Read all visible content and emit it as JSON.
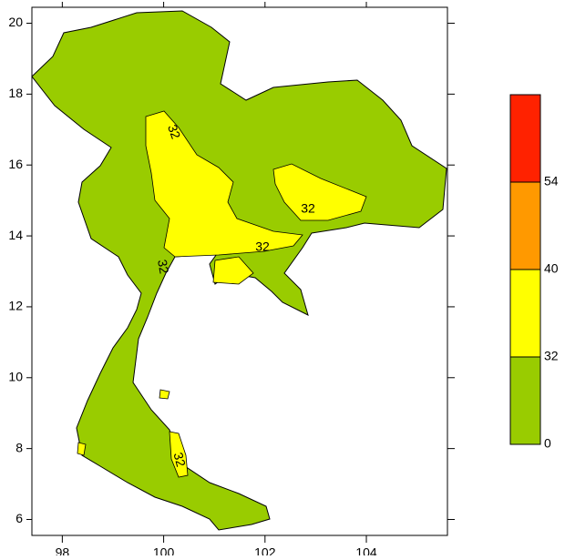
{
  "map": {
    "xlim": [
      97.4,
      105.6
    ],
    "ylim": [
      5.55,
      20.45
    ],
    "xticks": [
      98,
      100,
      102,
      104
    ],
    "yticks": [
      6,
      8,
      10,
      12,
      14,
      16,
      18,
      20
    ],
    "colorbar": {
      "levels": [
        0,
        32,
        40,
        54
      ],
      "colors": [
        "#99cc00",
        "#ffff00",
        "#ff9900",
        "#ff2200"
      ]
    },
    "contour_labels": [
      "32",
      "32",
      "32",
      "32",
      "32"
    ]
  }
}
